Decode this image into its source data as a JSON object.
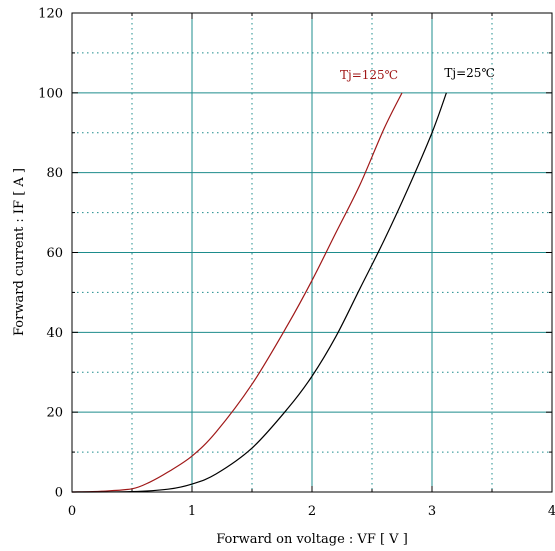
{
  "chart_data": {
    "type": "line",
    "title": "",
    "xlabel": "Forward on voltage  :  VF  [ V ]",
    "ylabel": "Forward current  :  IF  [ A ]",
    "xlim": [
      0,
      4
    ],
    "ylim": [
      0,
      120
    ],
    "x_ticks": [
      "0",
      "1",
      "2",
      "3",
      "4"
    ],
    "y_ticks": [
      "0",
      "20",
      "40",
      "60",
      "80",
      "100",
      "120"
    ],
    "grid": true,
    "series": [
      {
        "name": "Tj=125℃",
        "color": "#a01818",
        "x": [
          0,
          0.25,
          0.5,
          0.65,
          0.8,
          1.0,
          1.2,
          1.5,
          1.8,
          2.0,
          2.2,
          2.4,
          2.6,
          2.75
        ],
        "y": [
          0,
          0.2,
          0.8,
          2.5,
          5,
          9,
          15,
          27,
          42,
          53,
          65,
          77,
          91,
          100
        ]
      },
      {
        "name": "Tj=25℃",
        "color": "#000000",
        "x": [
          0,
          0.5,
          0.8,
          1.0,
          1.2,
          1.5,
          1.8,
          2.0,
          2.2,
          2.4,
          2.6,
          2.8,
          3.0,
          3.12
        ],
        "y": [
          0,
          0.1,
          0.7,
          2,
          4.5,
          11,
          21,
          29,
          39,
          51,
          63,
          76,
          90,
          100
        ]
      }
    ]
  }
}
